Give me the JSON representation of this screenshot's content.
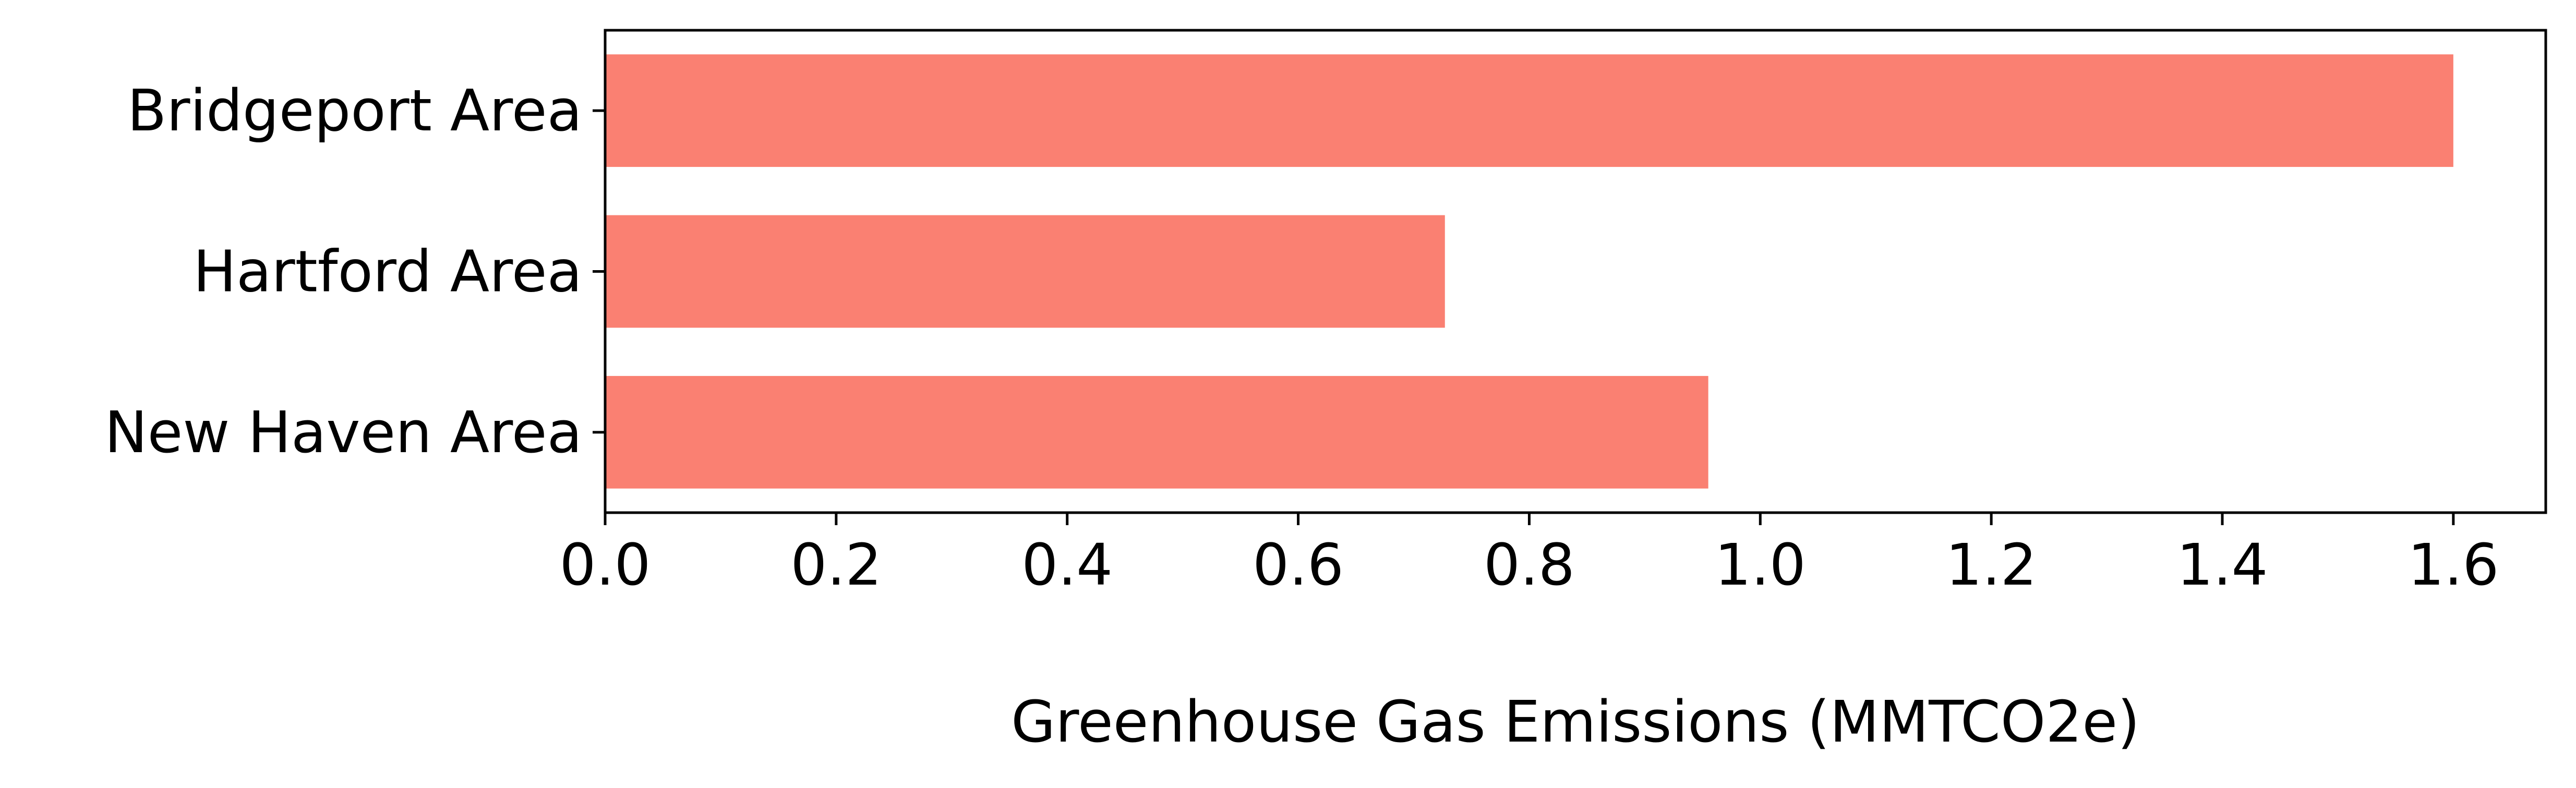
{
  "chart_data": {
    "type": "bar",
    "orientation": "horizontal",
    "categories": [
      "Bridgeport Area",
      "Hartford Area",
      "New Haven Area"
    ],
    "values": [
      1.6,
      0.727,
      0.955
    ],
    "xlabel": "Greenhouse Gas Emissions (MMTCO2e)",
    "ylabel": "",
    "title": "",
    "xlim": [
      0,
      1.68
    ],
    "xticks": [
      0.0,
      0.2,
      0.4,
      0.6,
      0.8,
      1.0,
      1.2,
      1.4,
      1.6
    ],
    "xtick_labels": [
      "0.0",
      "0.2",
      "0.4",
      "0.6",
      "0.8",
      "1.0",
      "1.2",
      "1.4",
      "1.6"
    ],
    "grid": false,
    "bar_color": "#fa8072"
  }
}
